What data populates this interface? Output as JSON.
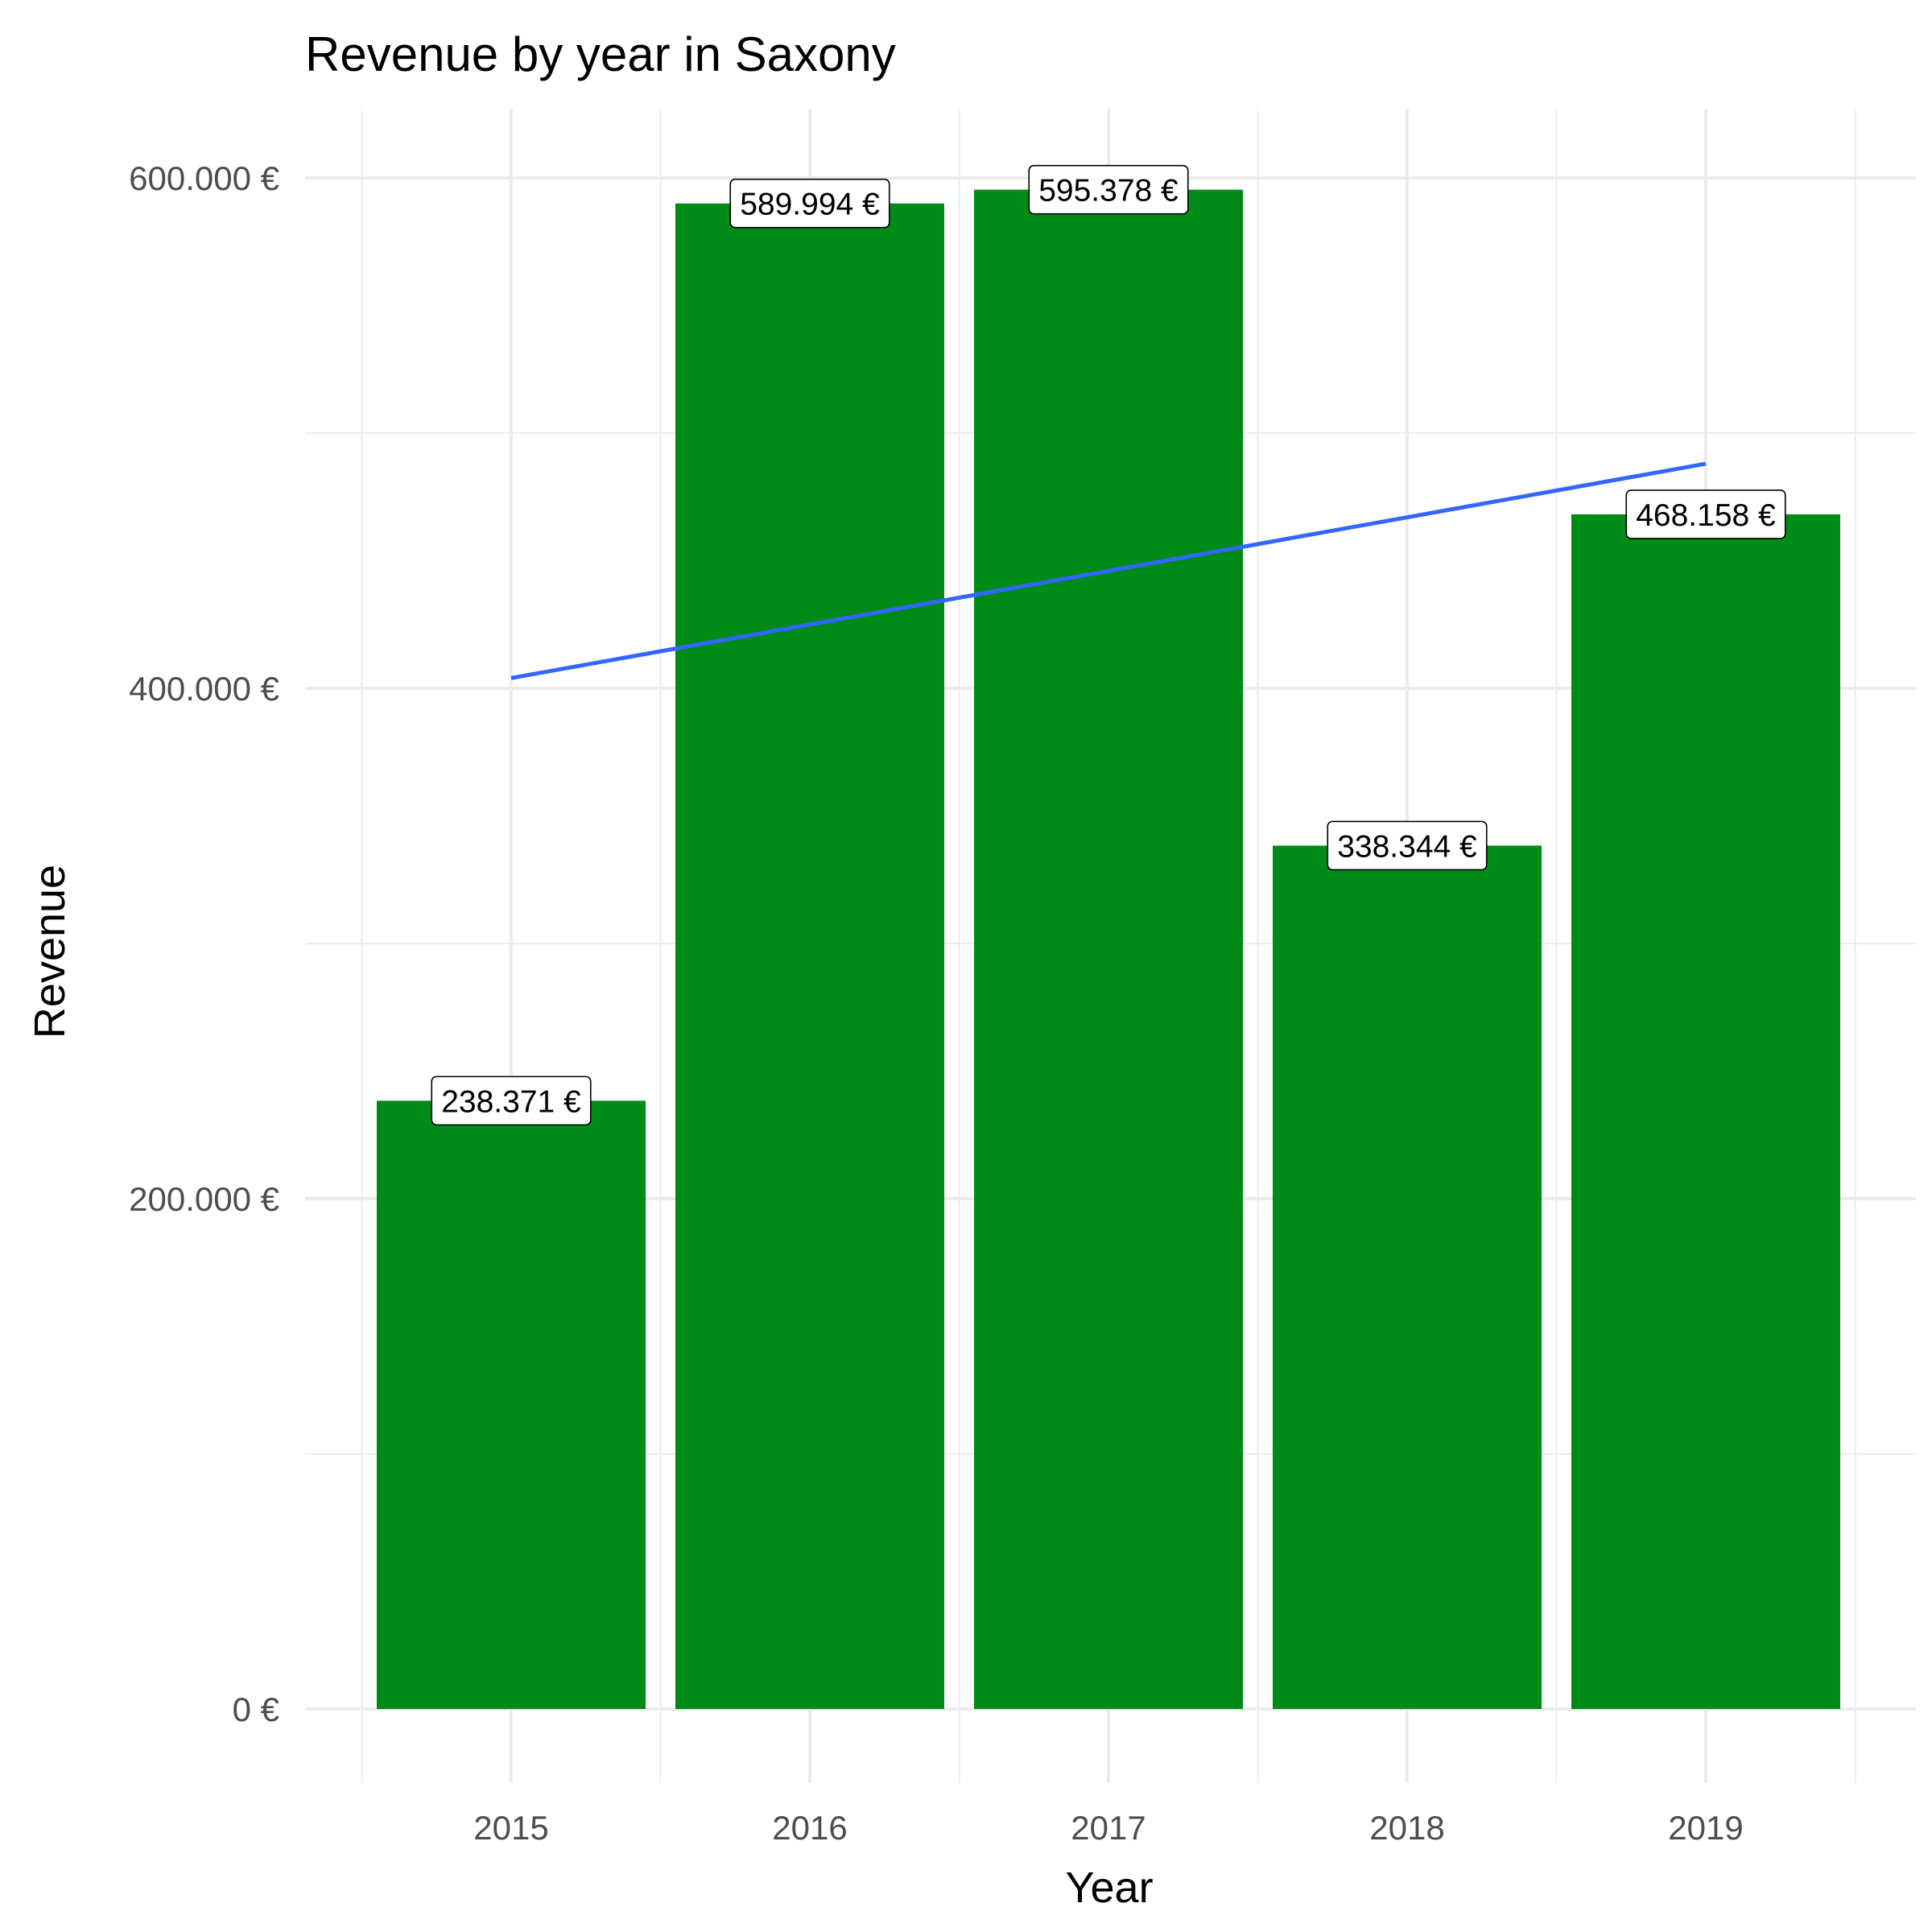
{
  "chart_data": {
    "type": "bar",
    "title": "Revenue by year in Saxony",
    "xlabel": "Year",
    "ylabel": "Revenue",
    "categories": [
      "2015",
      "2016",
      "2017",
      "2018",
      "2019"
    ],
    "values": [
      238371,
      589994,
      595378,
      338344,
      468158
    ],
    "value_labels": [
      "238.371 €",
      "589.994 €",
      "595.378 €",
      "338.344 €",
      "468.158 €"
    ],
    "y_ticks": [
      0,
      200000,
      400000,
      600000
    ],
    "y_tick_labels": [
      "0 €",
      "200.000 €",
      "400.000 €",
      "600.000 €"
    ],
    "ylim": [
      -30000,
      625000
    ],
    "grid": true,
    "bar_color": "#008b18",
    "trend_line": {
      "type": "linear",
      "color": "#3366ff",
      "start": 404000,
      "end": 488000
    }
  }
}
